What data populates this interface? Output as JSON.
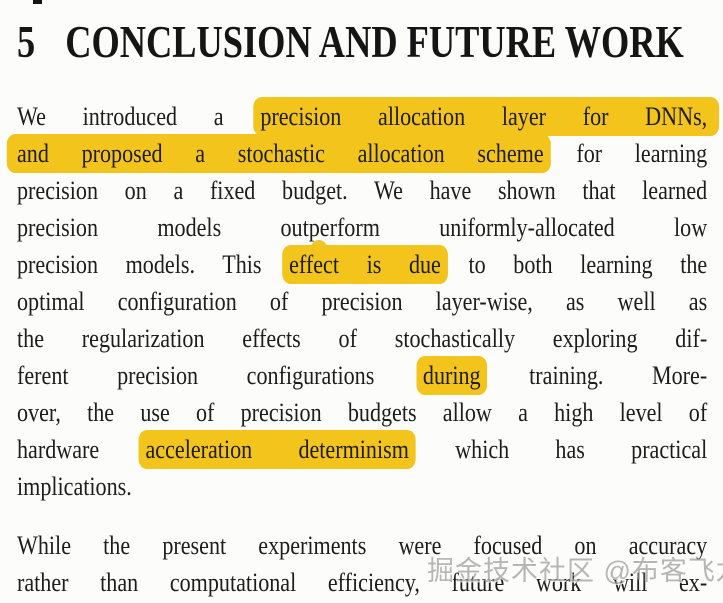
{
  "page": {
    "background_color": "#FCFCFB",
    "text_color": "#1D1D1D",
    "highlight_color": "#F3C41C"
  },
  "heading": {
    "number": "5",
    "title": "CONCLUSION AND FUTURE WORK"
  },
  "paragraphs": [
    {
      "lines": [
        {
          "segments": [
            {
              "text": "We introduced a ",
              "highlight": false
            },
            {
              "text": "precision allocation layer for DNNs,",
              "highlight": true
            }
          ]
        },
        {
          "segments": [
            {
              "text": "and proposed a stochastic allocation scheme",
              "highlight": true
            },
            {
              "text": " for learning",
              "highlight": false
            }
          ]
        },
        {
          "segments": [
            {
              "text": "precision on a fixed budget. We have shown that learned",
              "highlight": false
            }
          ]
        },
        {
          "segments": [
            {
              "text": "precision models outperform uniformly-allocated low",
              "highlight": false
            }
          ]
        },
        {
          "segments": [
            {
              "text": "precision models. This ",
              "highlight": false
            },
            {
              "text": "effect is due",
              "highlight": true
            },
            {
              "text": " to both learning the",
              "highlight": false
            }
          ]
        },
        {
          "segments": [
            {
              "text": "optimal configuration of precision layer-wise, as well as",
              "highlight": false
            }
          ]
        },
        {
          "segments": [
            {
              "text": "the regularization effects of stochastically exploring dif-",
              "highlight": false
            }
          ]
        },
        {
          "segments": [
            {
              "text": "ferent precision configurations ",
              "highlight": false
            },
            {
              "text": "during",
              "highlight": true
            },
            {
              "text": " training. More-",
              "highlight": false
            }
          ]
        },
        {
          "segments": [
            {
              "text": "over, the use of precision budgets allow a high level of",
              "highlight": false
            }
          ]
        },
        {
          "segments": [
            {
              "text": "hardware ",
              "highlight": false
            },
            {
              "text": "acceleration determinism",
              "highlight": true
            },
            {
              "text": " which has practical",
              "highlight": false
            }
          ]
        },
        {
          "segments": [
            {
              "text": "implications.",
              "highlight": false
            }
          ]
        }
      ]
    },
    {
      "lines": [
        {
          "segments": [
            {
              "text": "While the present experiments were focused on accuracy",
              "highlight": false
            }
          ]
        },
        {
          "segments": [
            {
              "text": "rather than computational efficiency, future work will ex-",
              "highlight": false
            }
          ]
        }
      ]
    }
  ],
  "watermark": {
    "text": "掘金技术社区 @布客飞龙"
  }
}
